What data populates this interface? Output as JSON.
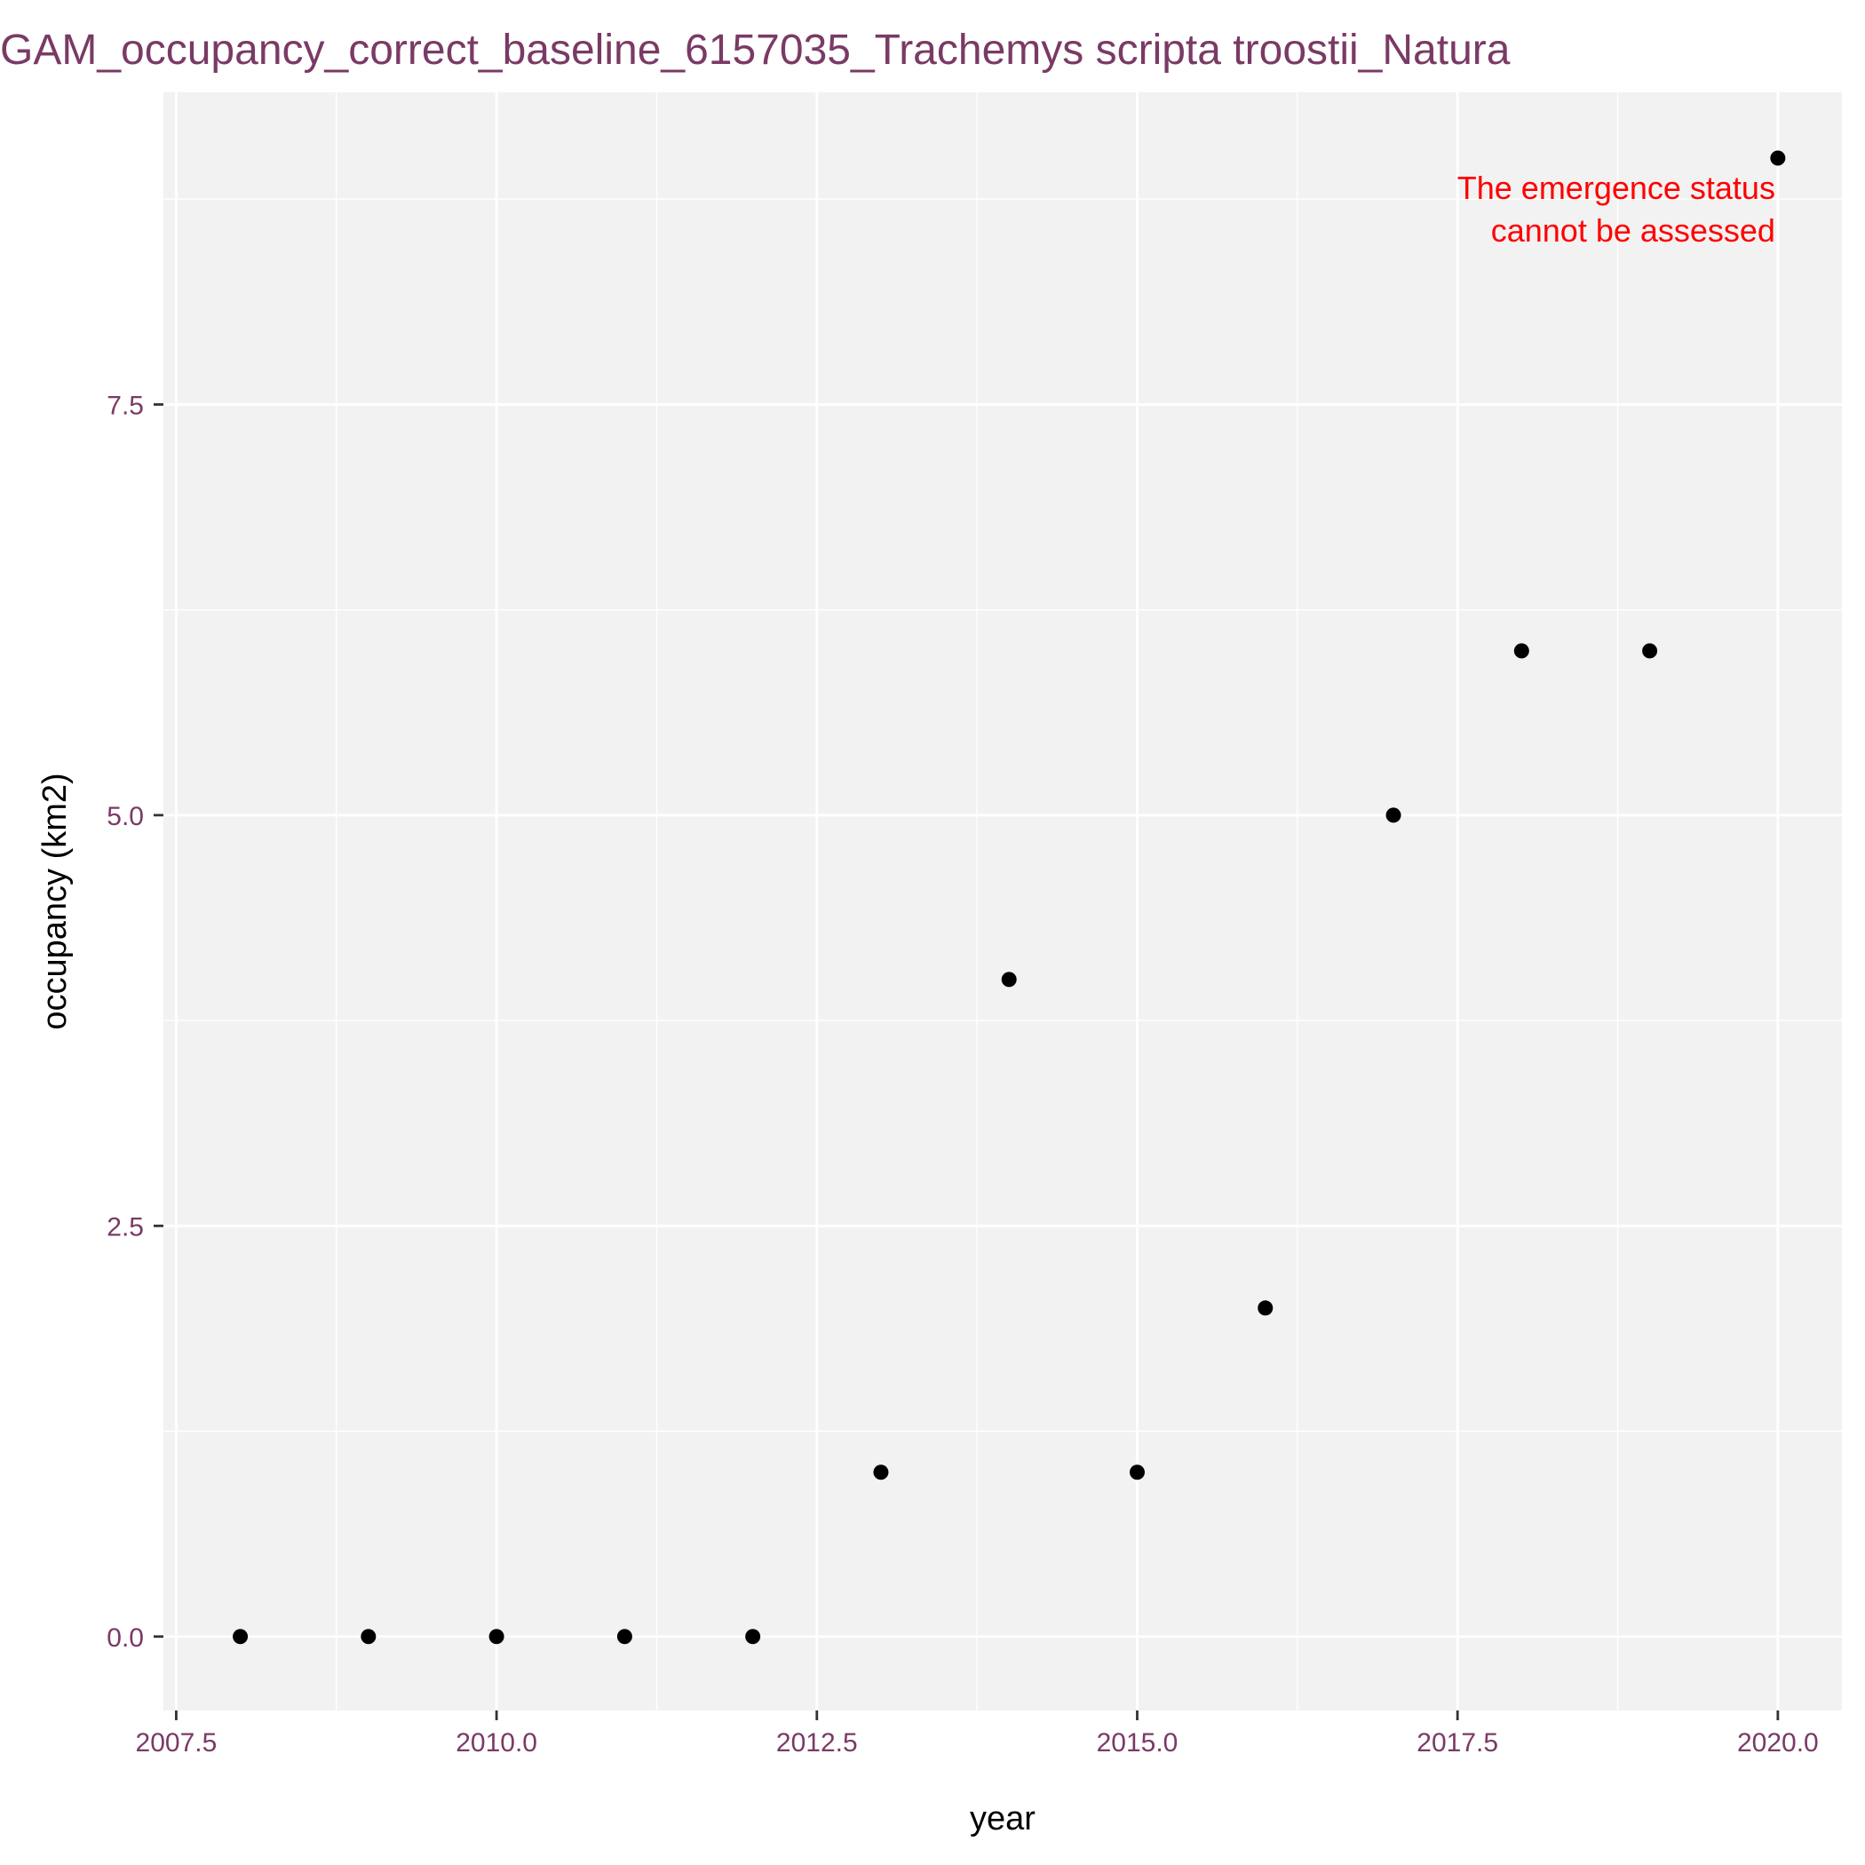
{
  "colors": {
    "panel": "#f2f2f2",
    "grid_major": "#ffffff",
    "grid_minor": "#ffffff",
    "points": "#000000",
    "title": "#7a3a65",
    "ticks": "#7a3a65",
    "annotation": "#ff0000"
  },
  "chart_data": {
    "type": "scatter",
    "title": "GAM_occupancy_correct_baseline_6157035_Trachemys scripta troostii_Natura",
    "xlabel": "year",
    "ylabel": "occupancy (km2)",
    "xlim": [
      2007.4,
      2020.5
    ],
    "ylim": [
      -0.45,
      9.4
    ],
    "x_ticks": [
      2007.5,
      2010.0,
      2012.5,
      2015.0,
      2017.5,
      2020.0
    ],
    "x_tick_labels": [
      "2007.5",
      "2010.0",
      "2012.5",
      "2015.0",
      "2017.5",
      "2020.0"
    ],
    "y_ticks": [
      0.0,
      2.5,
      5.0,
      7.5
    ],
    "y_tick_labels": [
      "0.0",
      "2.5",
      "5.0",
      "7.5"
    ],
    "grid": true,
    "points": [
      {
        "x": 2008,
        "y": 0
      },
      {
        "x": 2009,
        "y": 0
      },
      {
        "x": 2010,
        "y": 0
      },
      {
        "x": 2011,
        "y": 0
      },
      {
        "x": 2012,
        "y": 0
      },
      {
        "x": 2013,
        "y": 1
      },
      {
        "x": 2014,
        "y": 4
      },
      {
        "x": 2015,
        "y": 1
      },
      {
        "x": 2016,
        "y": 2
      },
      {
        "x": 2017,
        "y": 5
      },
      {
        "x": 2018,
        "y": 6
      },
      {
        "x": 2019,
        "y": 6
      },
      {
        "x": 2020,
        "y": 9
      }
    ],
    "annotation": {
      "lines": [
        "The emergence status",
        "cannot be assessed"
      ],
      "color": "#ff0000"
    }
  }
}
